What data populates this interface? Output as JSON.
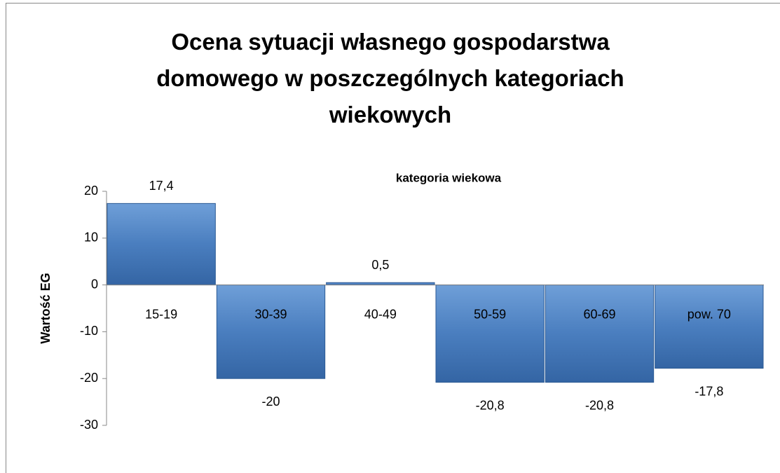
{
  "chart_data": {
    "type": "bar",
    "title": "Ocena sytuacji własnego gospodarstwa domowego w poszczególnych kategoriach wiekowych",
    "x_label": "kategoria wiekowa",
    "y_label": "Wartość EG",
    "categories": [
      "15-19",
      "30-39",
      "40-49",
      "50-59",
      "60-69",
      "pow. 70"
    ],
    "values": [
      17.4,
      -20,
      0.5,
      -20.8,
      -20.8,
      -17.8
    ],
    "value_labels": [
      "17,4",
      "-20",
      "0,5",
      "-20,8",
      "-20,8",
      "-17,8"
    ],
    "color": "#4f81bd",
    "ylim": [
      -30,
      20
    ],
    "yticks": [
      20,
      10,
      0,
      -10,
      -20,
      -30
    ],
    "grid": false
  }
}
